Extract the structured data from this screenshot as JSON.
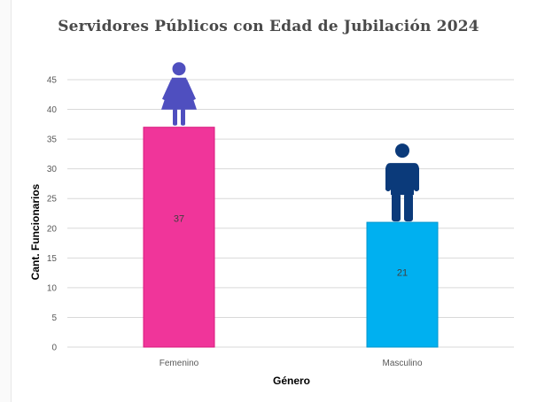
{
  "chart_data": {
    "type": "bar",
    "title": "Servidores Públicos con Edad de Jubilación 2024",
    "xlabel": "Género",
    "ylabel": "Cant. Funcionarios",
    "categories": [
      "Femenino",
      "Masculino"
    ],
    "values": [
      37,
      21
    ],
    "data_labels": [
      "37",
      "21"
    ],
    "ylim": [
      0,
      45
    ],
    "yticks": [
      "0",
      "5",
      "10",
      "15",
      "20",
      "25",
      "30",
      "35",
      "40",
      "45"
    ],
    "colors": [
      "#F0359A",
      "#00B0F0"
    ],
    "icon_colors": [
      "#4F4FBF",
      "#0B3A7A"
    ],
    "icons": [
      "female-figure-icon",
      "male-figure-icon"
    ],
    "grid": true,
    "legend": "none"
  }
}
